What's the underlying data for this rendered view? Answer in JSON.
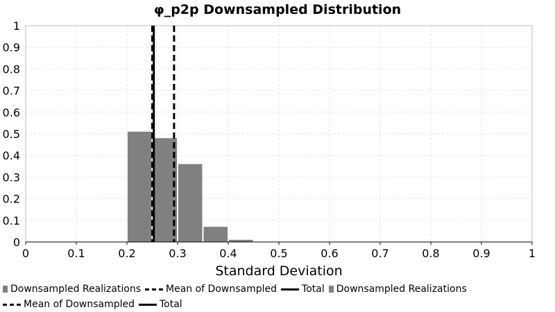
{
  "chart_data": {
    "type": "bar",
    "title": "φ_p2p Downsampled Distribution",
    "xlabel": "Standard Deviation",
    "ylabel": "",
    "xlim": [
      0,
      1
    ],
    "ylim": [
      0,
      1
    ],
    "x_ticks": [
      "0",
      "0.1",
      "0.2",
      "0.3",
      "0.4",
      "0.5",
      "0.6",
      "0.7",
      "0.8",
      "0.9",
      "1"
    ],
    "y_ticks": [
      "0",
      "0.1",
      "0.2",
      "0.3",
      "0.4",
      "0.5",
      "0.6",
      "0.7",
      "0.8",
      "0.9",
      "1"
    ],
    "grid": true,
    "bins": [
      {
        "x_start": 0.2,
        "x_end": 0.25,
        "value": 0.51
      },
      {
        "x_start": 0.25,
        "x_end": 0.3,
        "value": 0.48
      },
      {
        "x_start": 0.3,
        "x_end": 0.35,
        "value": 0.36
      },
      {
        "x_start": 0.35,
        "x_end": 0.4,
        "value": 0.07
      },
      {
        "x_start": 0.4,
        "x_end": 0.45,
        "value": 0.01
      }
    ],
    "lines": [
      {
        "x": 0.293,
        "style": "dashed"
      },
      {
        "x": 0.25,
        "style": "dashed"
      },
      {
        "x": 0.253,
        "style": "solid"
      }
    ],
    "bar_color": "#808080",
    "legend_position": "bottom",
    "legend": [
      {
        "label": "Downsampled Realizations",
        "kind": "box"
      },
      {
        "label": "Mean of Downsampled",
        "kind": "dash"
      },
      {
        "label": "Total",
        "kind": "solid"
      },
      {
        "label": "Downsampled Realizations",
        "kind": "box"
      },
      {
        "label": "Mean of Downsampled",
        "kind": "dash"
      },
      {
        "label": "Total",
        "kind": "solid"
      }
    ]
  }
}
